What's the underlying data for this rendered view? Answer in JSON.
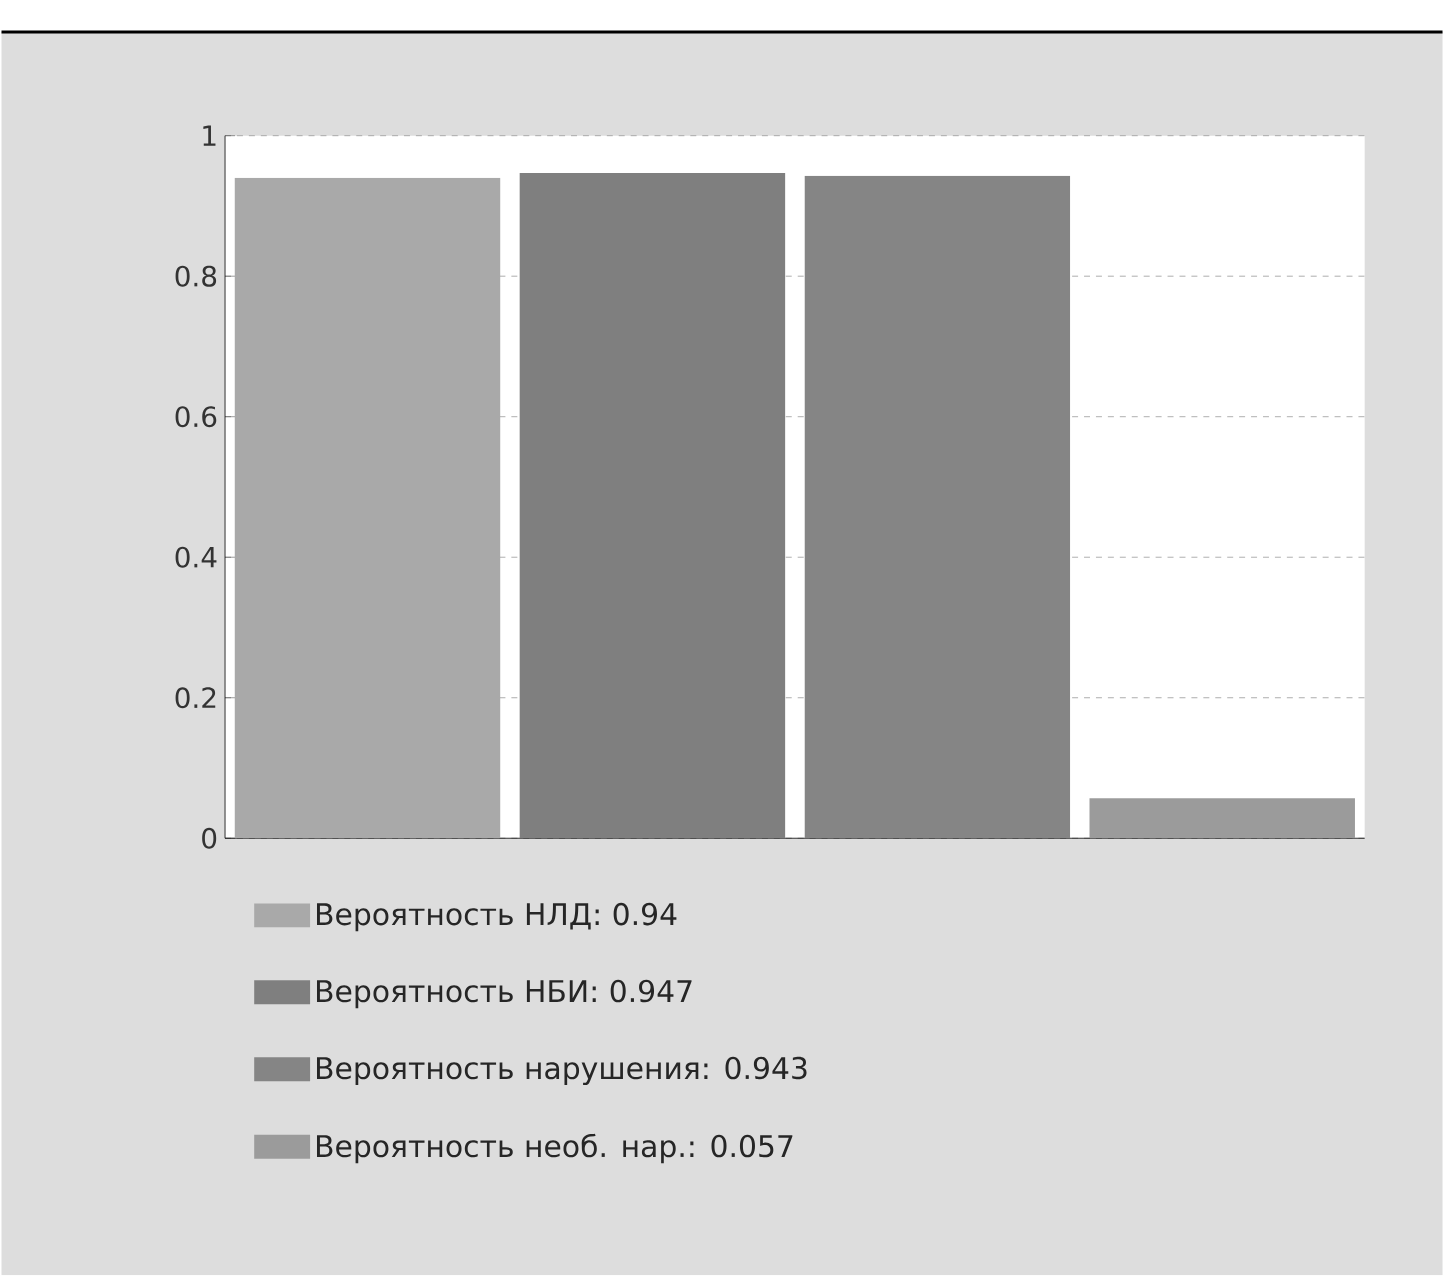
{
  "chart_data": {
    "type": "bar",
    "categories": [
      null,
      null,
      null,
      null
    ],
    "series": [
      {
        "name": "Вероятность НЛД: 0.94",
        "color": "#a9a9a9",
        "values": [
          0.94,
          null,
          null,
          null
        ]
      },
      {
        "name": "Вероятность НБИ: 0.947",
        "color": "#7f7f7f",
        "values": [
          null,
          0.947,
          null,
          null
        ]
      },
      {
        "name": "Вероятность нарушения: 0.943",
        "color": "#858585",
        "values": [
          null,
          null,
          0.943,
          null
        ]
      },
      {
        "name": "Вероятность необ. нар.: 0.057",
        "color": "#9b9b9b",
        "values": [
          null,
          null,
          null,
          0.057
        ]
      }
    ],
    "ylim": [
      0,
      1
    ],
    "yticks": [
      0,
      0.2,
      0.4,
      0.6,
      0.8,
      1
    ],
    "grid": "y",
    "legend": "bottom"
  }
}
